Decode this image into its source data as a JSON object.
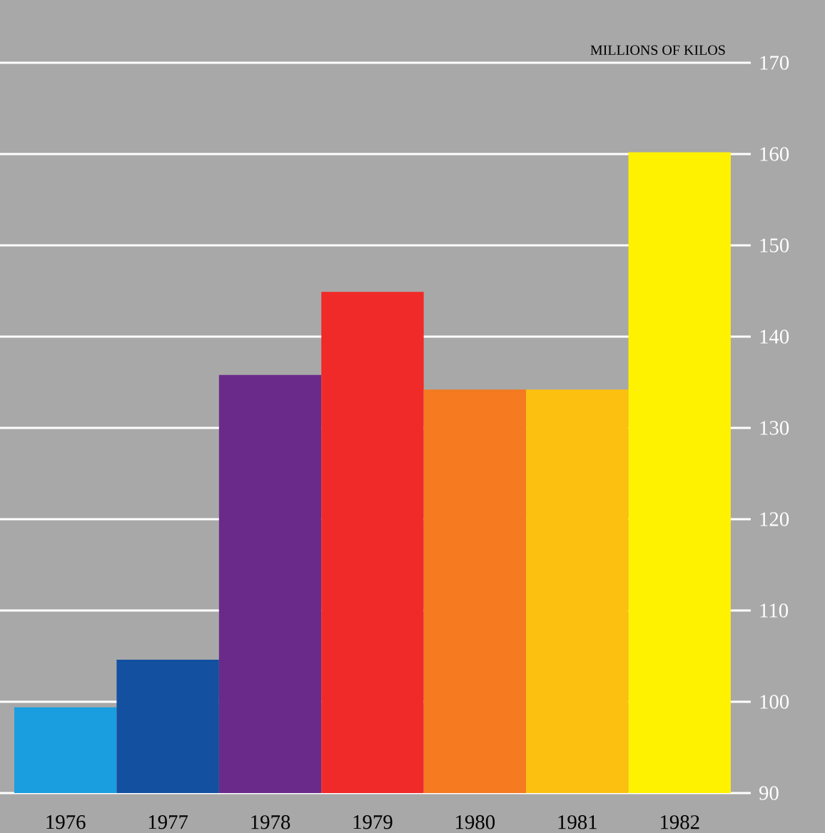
{
  "chart_data": {
    "type": "bar",
    "ylabel": "MILLIONS OF KILOS",
    "categories": [
      "1976",
      "1977",
      "1978",
      "1979",
      "1980",
      "1981",
      "1982"
    ],
    "values": [
      99.4,
      104.6,
      135.8,
      144.9,
      134.2,
      134.2,
      160.2
    ],
    "colors": [
      "#1a9ee0",
      "#1350a0",
      "#6a2a8a",
      "#f02a28",
      "#f57a20",
      "#fcc010",
      "#fff200"
    ],
    "ylim": [
      90,
      170
    ],
    "yticks": [
      90,
      100,
      110,
      120,
      130,
      140,
      150,
      160,
      170
    ],
    "grid": "y"
  }
}
